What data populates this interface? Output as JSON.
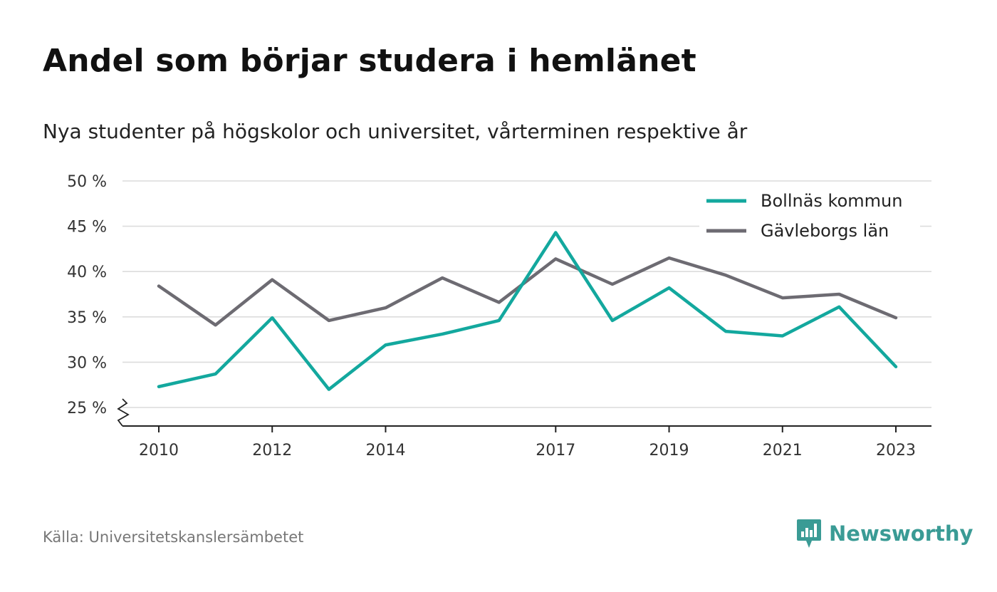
{
  "title": "Andel som börjar studera i hemlänet",
  "subtitle": "Nya studenter på högskolor och universitet, vårterminen respektive år",
  "source": "Källa: Universitetskanslersämbetet",
  "brand": {
    "name": "Newsworthy",
    "color": "#3a9b95",
    "icon": "newsworthy-logo-icon"
  },
  "chart_data": {
    "type": "line",
    "title": "Andel som börjar studera i hemlänet",
    "subtitle": "Nya studenter på högskolor och universitet, vårterminen respektive år",
    "x": [
      2010,
      2011,
      2012,
      2013,
      2014,
      2015,
      2016,
      2017,
      2018,
      2019,
      2020,
      2021,
      2022,
      2023
    ],
    "x_tick_values": [
      2010,
      2012,
      2014,
      2017,
      2019,
      2021,
      2023
    ],
    "x_tick_labels": [
      "2010",
      "2012",
      "2014",
      "2017",
      "2019",
      "2021",
      "2023"
    ],
    "y_tick_values": [
      25,
      30,
      35,
      40,
      45,
      50
    ],
    "y_tick_labels": [
      "25 %",
      "30 %",
      "35 %",
      "40 %",
      "45 %",
      "50 %"
    ],
    "ylim": [
      23,
      50
    ],
    "y_axis_break": true,
    "grid": true,
    "legend_position": "top-right",
    "series": [
      {
        "name": "Bollnäs kommun",
        "color": "#13a89e",
        "values": [
          27.3,
          28.7,
          34.9,
          27.0,
          31.9,
          33.1,
          34.6,
          44.3,
          34.6,
          38.2,
          33.4,
          32.9,
          36.1,
          29.5
        ]
      },
      {
        "name": "Gävleborgs län",
        "color": "#6d6b72",
        "values": [
          38.4,
          34.1,
          39.1,
          34.6,
          36.0,
          39.3,
          36.6,
          41.4,
          38.6,
          41.5,
          39.6,
          37.1,
          37.5,
          34.9
        ]
      }
    ]
  }
}
